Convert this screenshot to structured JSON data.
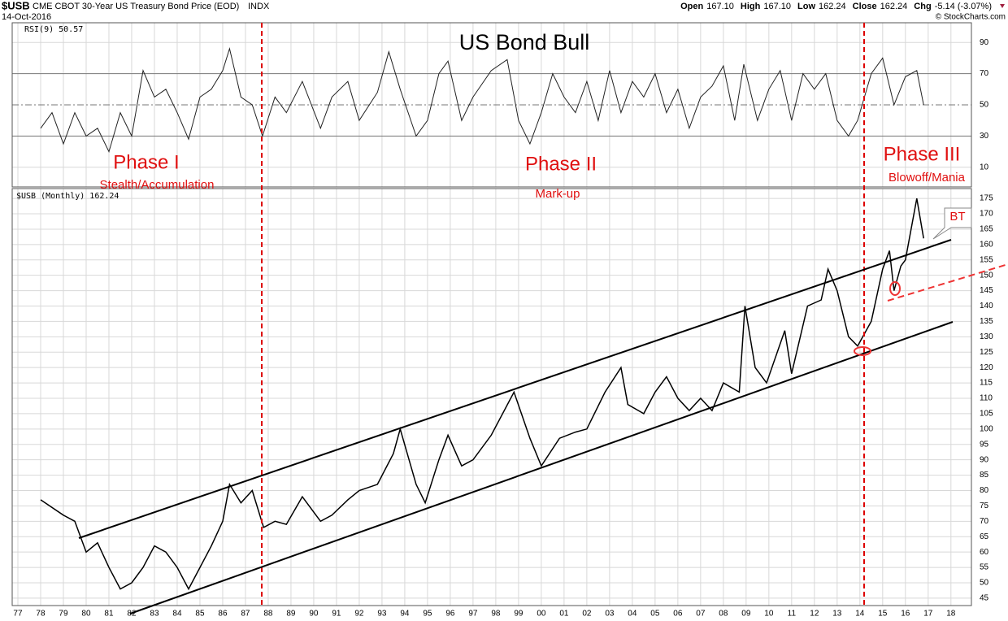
{
  "header": {
    "symbol": "$USB",
    "description": "CME CBOT 30-Year US Treasury Bond Price (EOD)",
    "exchange": "INDX",
    "date": "14-Oct-2016",
    "quote": [
      {
        "label": "Open",
        "value": "167.10"
      },
      {
        "label": "High",
        "value": "167.10"
      },
      {
        "label": "Low",
        "value": "162.24"
      },
      {
        "label": "Close",
        "value": "162.24"
      },
      {
        "label": "Chg",
        "value": "-5.14 (-3.07%)"
      }
    ],
    "credit": "© StockCharts.com"
  },
  "chart_data": [
    {
      "type": "line",
      "legend": "RSI(9) 50.57",
      "title": "US Bond Bull",
      "color": "#222",
      "xlim": [
        1976.75,
        2018.9
      ],
      "ylim": [
        -2.6,
        102.6
      ],
      "yticks": [
        10,
        30,
        50,
        70,
        90
      ],
      "grid": true,
      "x": [
        1978.0,
        1978.5,
        1979.0,
        1979.5,
        1980.0,
        1980.5,
        1981.0,
        1981.5,
        1982.0,
        1982.5,
        1983.0,
        1983.5,
        1984.0,
        1984.5,
        1985.0,
        1985.5,
        1986.0,
        1986.3,
        1986.8,
        1987.3,
        1987.75,
        1988.3,
        1988.8,
        1989.5,
        1990.3,
        1990.8,
        1991.5,
        1992.0,
        1992.8,
        1993.3,
        1993.8,
        1994.5,
        1995.0,
        1995.5,
        1995.9,
        1996.5,
        1997.0,
        1997.8,
        1998.5,
        1999.0,
        1999.5,
        2000.0,
        2000.5,
        2001.0,
        2001.5,
        2002.0,
        2002.5,
        2003.0,
        2003.5,
        2004.0,
        2004.5,
        2005.0,
        2005.5,
        2006.0,
        2006.5,
        2007.0,
        2007.5,
        2008.0,
        2008.5,
        2008.9,
        2009.5,
        2010.0,
        2010.5,
        2011.0,
        2011.5,
        2012.0,
        2012.5,
        2013.0,
        2013.5,
        2013.9,
        2014.5,
        2015.0,
        2015.5,
        2016.0,
        2016.5,
        2016.8
      ],
      "values": [
        35,
        45,
        25,
        45,
        30,
        35,
        20,
        45,
        30,
        72,
        55,
        60,
        45,
        28,
        55,
        60,
        72,
        86,
        55,
        50,
        30,
        55,
        45,
        65,
        35,
        55,
        65,
        40,
        58,
        84,
        60,
        30,
        40,
        70,
        78,
        40,
        55,
        72,
        79,
        40,
        25,
        45,
        70,
        55,
        45,
        65,
        40,
        72,
        45,
        65,
        55,
        70,
        45,
        60,
        35,
        55,
        62,
        75,
        40,
        76,
        40,
        60,
        72,
        40,
        70,
        60,
        70,
        40,
        30,
        40,
        70,
        80,
        50,
        68,
        72,
        50
      ],
      "annotations": [
        {
          "text": "Phase I"
        },
        {
          "text": "Stealth/Accumulation"
        },
        {
          "text": "Phase II"
        },
        {
          "text": "Mark-up"
        },
        {
          "text": "Phase III"
        },
        {
          "text": "Blowoff/Mania"
        }
      ]
    },
    {
      "type": "line",
      "legend": "$USB (Monthly) 162.24",
      "color": "#000",
      "annotation": "BT",
      "xlim": [
        1976.75,
        2018.9
      ],
      "ylim": [
        42.6,
        178.2
      ],
      "yticks": [
        45,
        50,
        55,
        60,
        65,
        70,
        75,
        80,
        85,
        90,
        95,
        100,
        105,
        110,
        115,
        120,
        125,
        130,
        135,
        140,
        145,
        150,
        155,
        160,
        165,
        170,
        175
      ],
      "grid": true,
      "xticks": [
        {
          "value": 1977,
          "label": "77"
        },
        {
          "value": 1978,
          "label": "78"
        },
        {
          "value": 1979,
          "label": "79"
        },
        {
          "value": 1980,
          "label": "80"
        },
        {
          "value": 1981,
          "label": "81"
        },
        {
          "value": 1982,
          "label": "82"
        },
        {
          "value": 1983,
          "label": "83"
        },
        {
          "value": 1984,
          "label": "84"
        },
        {
          "value": 1985,
          "label": "85"
        },
        {
          "value": 1986,
          "label": "86"
        },
        {
          "value": 1987,
          "label": "87"
        },
        {
          "value": 1988,
          "label": "88"
        },
        {
          "value": 1989,
          "label": "89"
        },
        {
          "value": 1990,
          "label": "90"
        },
        {
          "value": 1991,
          "label": "91"
        },
        {
          "value": 1992,
          "label": "92"
        },
        {
          "value": 1993,
          "label": "93"
        },
        {
          "value": 1994,
          "label": "94"
        },
        {
          "value": 1995,
          "label": "95"
        },
        {
          "value": 1996,
          "label": "96"
        },
        {
          "value": 1997,
          "label": "97"
        },
        {
          "value": 1998,
          "label": "98"
        },
        {
          "value": 1999,
          "label": "99"
        },
        {
          "value": 2000,
          "label": "00"
        },
        {
          "value": 2001,
          "label": "01"
        },
        {
          "value": 2002,
          "label": "02"
        },
        {
          "value": 2003,
          "label": "03"
        },
        {
          "value": 2004,
          "label": "04"
        },
        {
          "value": 2005,
          "label": "05"
        },
        {
          "value": 2006,
          "label": "06"
        },
        {
          "value": 2007,
          "label": "07"
        },
        {
          "value": 2008,
          "label": "08"
        },
        {
          "value": 2009,
          "label": "09"
        },
        {
          "value": 2010,
          "label": "10"
        },
        {
          "value": 2011,
          "label": "11"
        },
        {
          "value": 2012,
          "label": "12"
        },
        {
          "value": 2013,
          "label": "13"
        },
        {
          "value": 2014,
          "label": "14"
        },
        {
          "value": 2015,
          "label": "15"
        },
        {
          "value": 2016,
          "label": "16"
        },
        {
          "value": 2017,
          "label": "17"
        },
        {
          "value": 2018,
          "label": "18"
        }
      ],
      "x": [
        1978.0,
        1979.0,
        1979.5,
        1980.0,
        1980.5,
        1981.0,
        1981.5,
        1982.0,
        1982.5,
        1983.0,
        1983.5,
        1984.0,
        1984.5,
        1985.0,
        1985.5,
        1986.0,
        1986.3,
        1986.8,
        1987.3,
        1987.8,
        1988.3,
        1988.8,
        1989.5,
        1990.3,
        1990.8,
        1991.5,
        1992.0,
        1992.8,
        1993.5,
        1993.8,
        1994.5,
        1994.9,
        1995.5,
        1995.9,
        1996.5,
        1997.0,
        1997.8,
        1998.8,
        1999.5,
        2000.0,
        2000.8,
        2001.5,
        2002.0,
        2002.8,
        2003.5,
        2003.8,
        2004.5,
        2005.0,
        2005.5,
        2006.0,
        2006.5,
        2007.0,
        2007.5,
        2008.0,
        2008.7,
        2008.95,
        2009.4,
        2009.9,
        2010.7,
        2011.0,
        2011.7,
        2012.3,
        2012.6,
        2013.0,
        2013.5,
        2013.9,
        2014.5,
        2015.0,
        2015.3,
        2015.5,
        2015.8,
        2016.0,
        2016.5,
        2016.8
      ],
      "values": [
        77,
        72,
        70,
        60,
        63,
        55,
        48,
        50,
        55,
        62,
        60,
        55,
        48,
        55,
        62,
        70,
        82,
        76,
        80,
        68,
        70,
        69,
        78,
        70,
        72,
        77,
        80,
        82,
        92,
        100,
        82,
        76,
        90,
        98,
        88,
        90,
        98,
        112,
        97,
        88,
        97,
        99,
        100,
        112,
        120,
        108,
        105,
        112,
        117,
        110,
        106,
        110,
        106,
        115,
        112,
        140,
        120,
        115,
        132,
        118,
        140,
        142,
        152,
        145,
        130,
        127,
        135,
        152,
        158,
        145,
        153,
        155,
        175,
        162
      ]
    }
  ]
}
